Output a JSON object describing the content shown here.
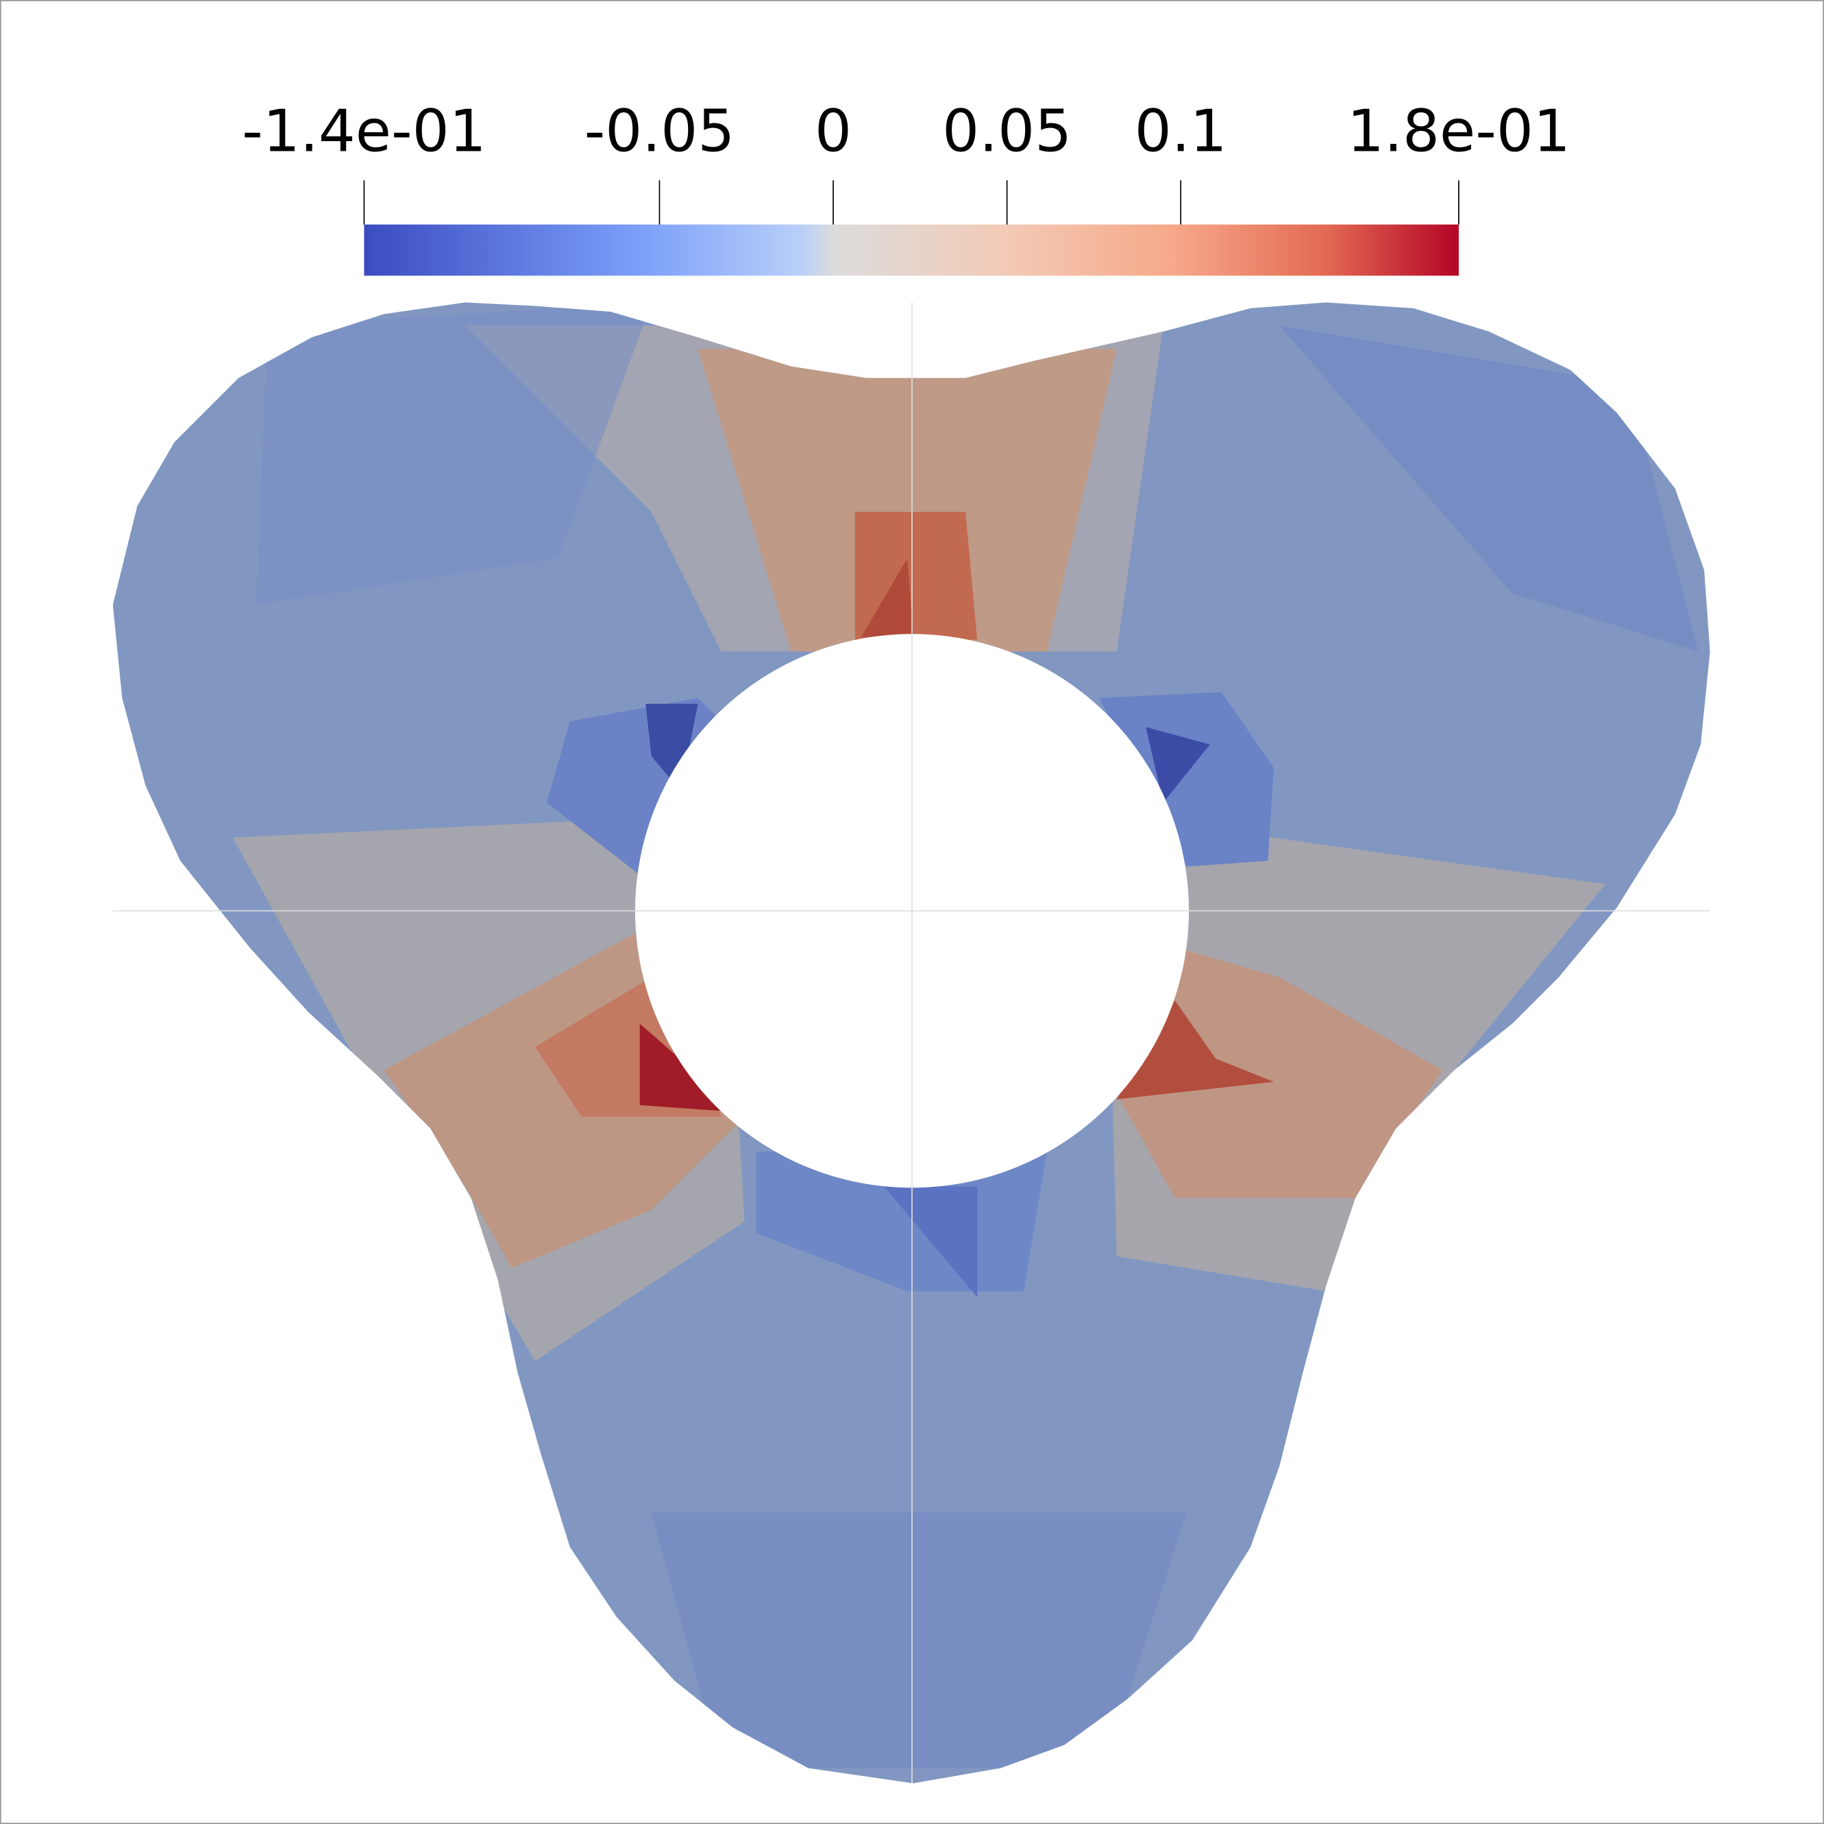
{
  "colorbar": {
    "range": [
      -0.135,
      0.18
    ],
    "ticks": [
      {
        "value": -0.135,
        "label": "-1.4e-01"
      },
      -0.05,
      0,
      0.05,
      0.1,
      {
        "value": 0.18,
        "label": "1.8e-01"
      }
    ]
  }
}
